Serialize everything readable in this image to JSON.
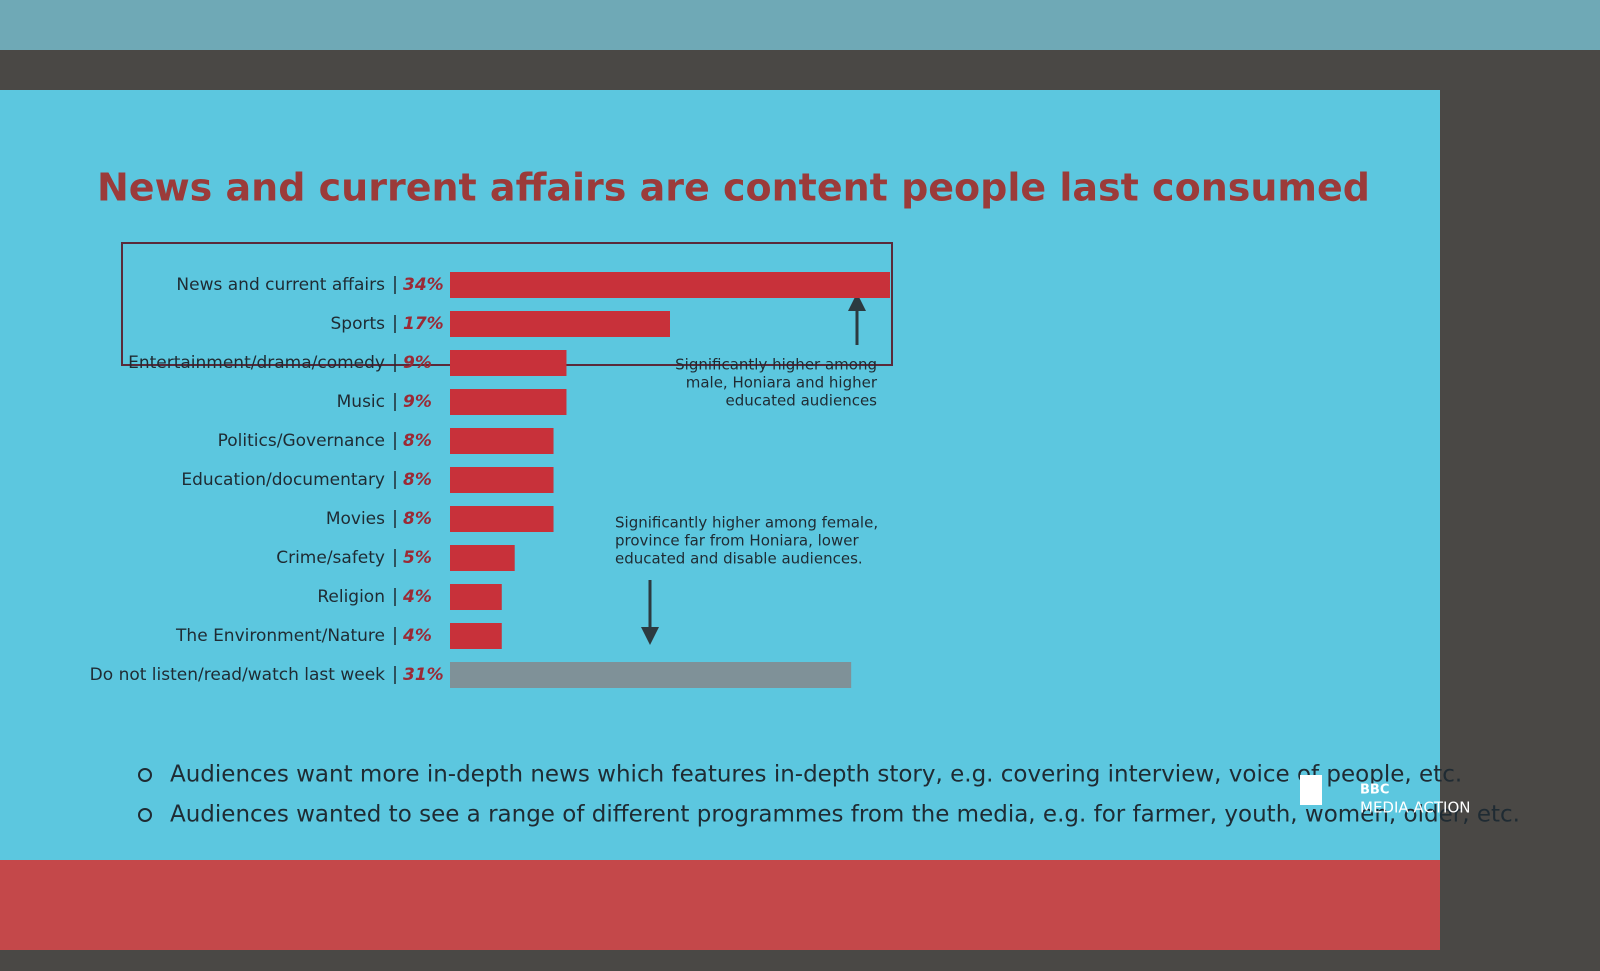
{
  "chart_data": {
    "type": "bar",
    "orientation": "horizontal",
    "title": "News and current affairs are content people last consumed",
    "categories": [
      "News and current affairs",
      "Sports",
      "Entertainment/drama/comedy",
      "Music",
      "Politics/Governance",
      "Education/documentary",
      "Movies",
      "Crime/safety",
      "Religion",
      "The Environment/Nature",
      "Do not listen/read/watch last week"
    ],
    "values": [
      34,
      17,
      9,
      9,
      8,
      8,
      8,
      5,
      4,
      4,
      31
    ],
    "value_labels": [
      "34%",
      "17%",
      "9%",
      "9%",
      "8%",
      "8%",
      "8%",
      "5%",
      "4%",
      "4%",
      "31%"
    ],
    "colors": [
      "#c8313a",
      "#c8313a",
      "#c8313a",
      "#c8313a",
      "#c8313a",
      "#c8313a",
      "#c8313a",
      "#c8313a",
      "#c8313a",
      "#c8313a",
      "#7f9198"
    ],
    "annotations": [
      [
        "Significantly higher among",
        "male, Honiara and higher",
        "educated audiences"
      ],
      [
        "Significantly higher among female,",
        "province far from Honiara, lower",
        "educated and disable audiences."
      ]
    ]
  },
  "bullets": [
    "Audiences want more in-depth news which features in-depth story, e.g. covering interview, voice of people, etc.",
    "Audiences wanted to see a range of different programmes from the media, e.g. for farmer, youth, women, older, etc."
  ],
  "logo": {
    "brand": "BBC",
    "name": "MEDIA ACTION"
  }
}
